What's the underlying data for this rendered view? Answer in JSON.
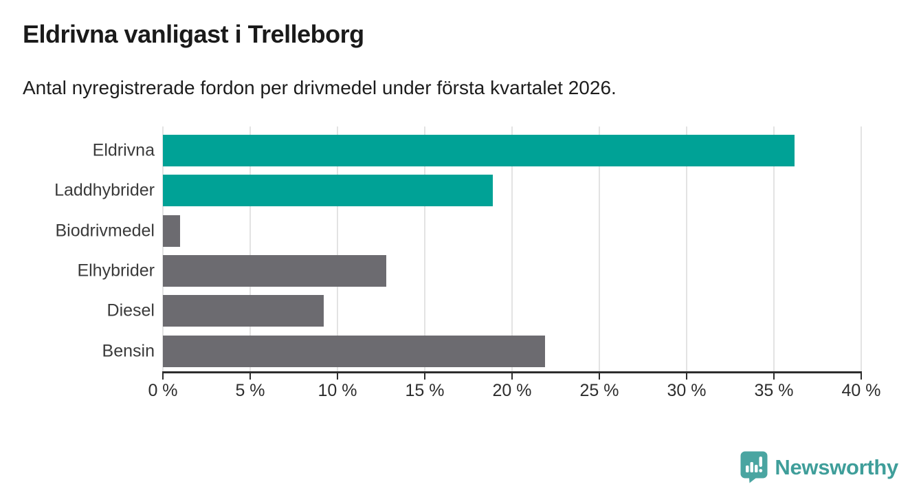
{
  "header": {
    "title": "Eldrivna vanligast i Trelleborg",
    "subtitle": "Antal nyregistrerade fordon per drivmedel under första kvartalet 2026."
  },
  "chart_data": {
    "type": "bar",
    "orientation": "horizontal",
    "title": "Eldrivna vanligast i Trelleborg",
    "subtitle": "Antal nyregistrerade fordon per drivmedel under första kvartalet 2026.",
    "categories": [
      "Eldrivna",
      "Laddhybrider",
      "Biodrivmedel",
      "Elhybrider",
      "Diesel",
      "Bensin"
    ],
    "values": [
      36.2,
      18.9,
      1.0,
      12.8,
      9.2,
      21.9
    ],
    "unit": "%",
    "bar_colors": [
      "#00a296",
      "#00a296",
      "#6c6b70",
      "#6c6b70",
      "#6c6b70",
      "#6c6b70"
    ],
    "highlight_color": "#00a296",
    "default_color": "#6c6b70",
    "xlabel": "",
    "ylabel": "",
    "xlim": [
      0,
      40
    ],
    "x_ticks": [
      0,
      5,
      10,
      15,
      20,
      25,
      30,
      35,
      40
    ],
    "x_tick_labels": [
      "0 %",
      "5 %",
      "10 %",
      "15 %",
      "20 %",
      "25 %",
      "30 %",
      "35 %",
      "40 %"
    ],
    "grid": "vertical-light",
    "legend": "none"
  },
  "footer": {
    "brand": "Newsworthy",
    "brand_color": "#3f9e9a",
    "icon": "newsworthy-speech-bubble-bar-chart-icon",
    "icon_color": "#4aa5a1"
  }
}
